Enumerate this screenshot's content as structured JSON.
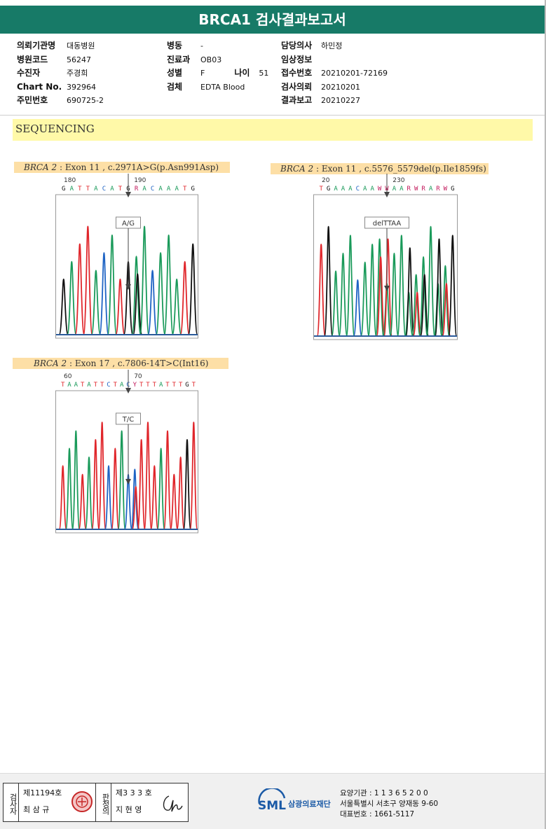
{
  "report": {
    "title": "BRCA1 검사결과보고서"
  },
  "patient": {
    "col1": [
      {
        "label": "의뢰기관명",
        "value": "대동병원"
      },
      {
        "label": "병원코드",
        "value": "56247"
      },
      {
        "label": "수진자",
        "value": "주경희"
      },
      {
        "label": "Chart No.",
        "value": "392964"
      },
      {
        "label": "주민번호",
        "value": "690725-2"
      }
    ],
    "col2": [
      {
        "label": "병동",
        "value": "-"
      },
      {
        "label": "진료과",
        "value": "OB03"
      },
      {
        "label": "성별",
        "value": "F"
      },
      {
        "label": "검체",
        "value": "EDTA Blood"
      }
    ],
    "age": {
      "label": "나이",
      "value": "51"
    },
    "col3": [
      {
        "label": "담당의사",
        "value": "하민정"
      },
      {
        "label": "임상정보",
        "value": ""
      },
      {
        "label": "접수번호",
        "value": "20210201-72169"
      },
      {
        "label": "검사의뢰",
        "value": "20210201"
      },
      {
        "label": "결과보고",
        "value": "20210227"
      }
    ]
  },
  "section": {
    "title": "SEQUENCING"
  },
  "variants": [
    {
      "gene": "BRCA 2",
      "detail": " : Exon 11 , c.2971A>G(p.Asn991Asp)",
      "pos_left": "180",
      "pos_right": "190",
      "bases": "GATTACATGRACAAATG",
      "call": "A/G"
    },
    {
      "gene": "BRCA 2",
      "detail": " : Exon 11 , c.5576_5579del(p.Ile1859fs)",
      "pos_left": "20",
      "pos_right": "230",
      "bases": "TGAAACAAWWAARWRARWG",
      "call": "delTTAA"
    },
    {
      "gene": "BRCA 2",
      "detail": " : Exon 17 , c.7806-14T>C(Int16)",
      "pos_left": "60",
      "pos_right": "70",
      "bases": "TAATATTCTACYTTTATTTGT",
      "call": "T/C"
    }
  ],
  "footer": {
    "inspector_label": "검사자",
    "inspector_no": "제11194호",
    "inspector_name": "최 삼 규",
    "reviewer_label": "판정의",
    "reviewer_no": "제3 3 3 호",
    "reviewer_name": "지 현 영",
    "org_logo": "SML",
    "org_name": "삼광의료재단",
    "lab_code": "요양기관 : 1 1 3 6 5 2 0 0",
    "address": "서울특별시 서초구 양재동 9-60",
    "phone": "대표번호 : 1661-5117"
  },
  "colors": {
    "header": "#177a67",
    "banner": "#fff9a8",
    "variant_label": "#fddfa6",
    "A": "#1a9a5a",
    "C": "#1f64c4",
    "G": "#111111",
    "T": "#e0262b"
  }
}
